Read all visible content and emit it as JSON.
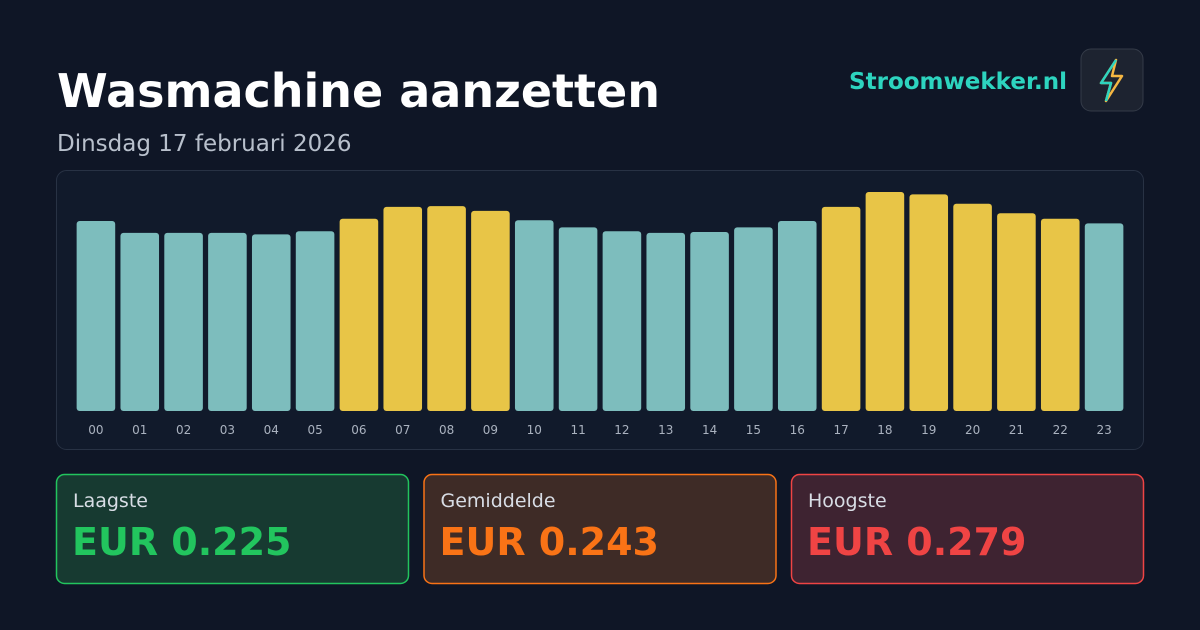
{
  "brand": "Stroomwekker.nl",
  "chart_data": {
    "type": "bar",
    "title": "Wasmachine aanzetten",
    "subtitle": "Dinsdag 17 februari 2026",
    "categories": [
      "00",
      "01",
      "02",
      "03",
      "04",
      "05",
      "06",
      "07",
      "08",
      "09",
      "10",
      "11",
      "12",
      "13",
      "14",
      "15",
      "16",
      "17",
      "18",
      "19",
      "20",
      "21",
      "22",
      "23"
    ],
    "values": [
      0.242,
      0.227,
      0.227,
      0.227,
      0.225,
      0.229,
      0.245,
      0.26,
      0.261,
      0.255,
      0.243,
      0.234,
      0.229,
      0.227,
      0.228,
      0.234,
      0.242,
      0.26,
      0.279,
      0.276,
      0.264,
      0.252,
      0.245,
      0.239
    ],
    "colors": [
      "#7dbdbd",
      "#7dbdbd",
      "#7dbdbd",
      "#7dbdbd",
      "#7dbdbd",
      "#7dbdbd",
      "#e8c547",
      "#e8c547",
      "#e8c547",
      "#e8c547",
      "#7dbdbd",
      "#7dbdbd",
      "#7dbdbd",
      "#7dbdbd",
      "#7dbdbd",
      "#7dbdbd",
      "#7dbdbd",
      "#e8c547",
      "#e8c547",
      "#e8c547",
      "#e8c547",
      "#e8c547",
      "#e8c547",
      "#7dbdbd"
    ],
    "ylim": [
      0,
      0.279
    ]
  },
  "stats": [
    {
      "label": "Laagste",
      "value": "EUR 0.225",
      "color": "#22c55e"
    },
    {
      "label": "Gemiddelde",
      "value": "EUR 0.243",
      "color": "#f97316"
    },
    {
      "label": "Hoogste",
      "value": "EUR 0.279",
      "color": "#ef4444"
    }
  ]
}
